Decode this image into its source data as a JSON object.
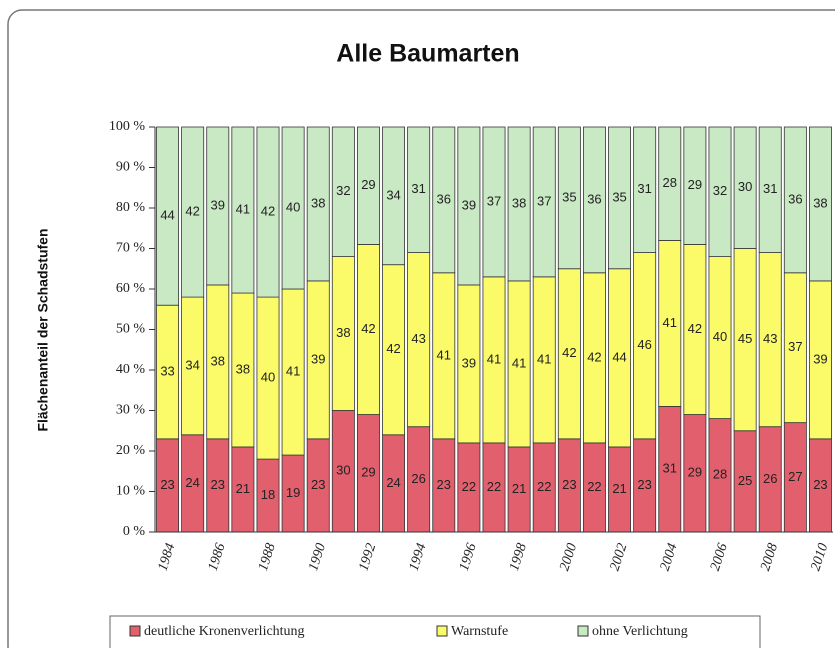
{
  "chart_data": {
    "type": "stacked_bar",
    "title": "Alle Baumarten",
    "y_label": "Flächenanteil der Schadstufen",
    "categories": [
      "1984",
      null,
      "1986",
      null,
      "1988",
      null,
      "1990",
      null,
      "1992",
      null,
      "1994",
      null,
      "1996",
      null,
      "1998",
      null,
      "2000",
      null,
      "2002",
      null,
      "2004",
      null,
      "2006",
      null,
      "2008",
      null,
      "2010"
    ],
    "series": [
      {
        "name": "deutliche Kronenverlichtung",
        "color": "#e2606e",
        "values": [
          23,
          24,
          23,
          21,
          18,
          19,
          23,
          30,
          29,
          24,
          26,
          23,
          22,
          22,
          21,
          22,
          23,
          22,
          21,
          23,
          31,
          29,
          28,
          25,
          26,
          27,
          23
        ]
      },
      {
        "name": "Warnstufe",
        "color": "#fbfb6a",
        "values": [
          33,
          34,
          38,
          38,
          40,
          41,
          39,
          38,
          42,
          42,
          43,
          41,
          39,
          41,
          41,
          41,
          42,
          42,
          44,
          46,
          41,
          42,
          40,
          45,
          43,
          37,
          39
        ]
      },
      {
        "name": "ohne Verlichtung",
        "color": "#c9e8c4",
        "values": [
          44,
          42,
          39,
          41,
          42,
          40,
          38,
          32,
          29,
          34,
          31,
          36,
          39,
          37,
          38,
          37,
          35,
          36,
          35,
          31,
          28,
          29,
          32,
          30,
          31,
          36,
          38
        ]
      }
    ],
    "ylim": [
      0,
      100
    ],
    "yticks": [
      {
        "value": 0,
        "label": "0 %"
      },
      {
        "value": 10,
        "label": "10 %"
      },
      {
        "value": 20,
        "label": "20 %"
      },
      {
        "value": 30,
        "label": "30 %"
      },
      {
        "value": 40,
        "label": "40 %"
      },
      {
        "value": 50,
        "label": "50 %"
      },
      {
        "value": 60,
        "label": "60 %"
      },
      {
        "value": 70,
        "label": "70 %"
      },
      {
        "value": 80,
        "label": "80 %"
      },
      {
        "value": 90,
        "label": "90 %"
      },
      {
        "value": 100,
        "label": "100 %"
      }
    ],
    "legend": "bottom"
  }
}
